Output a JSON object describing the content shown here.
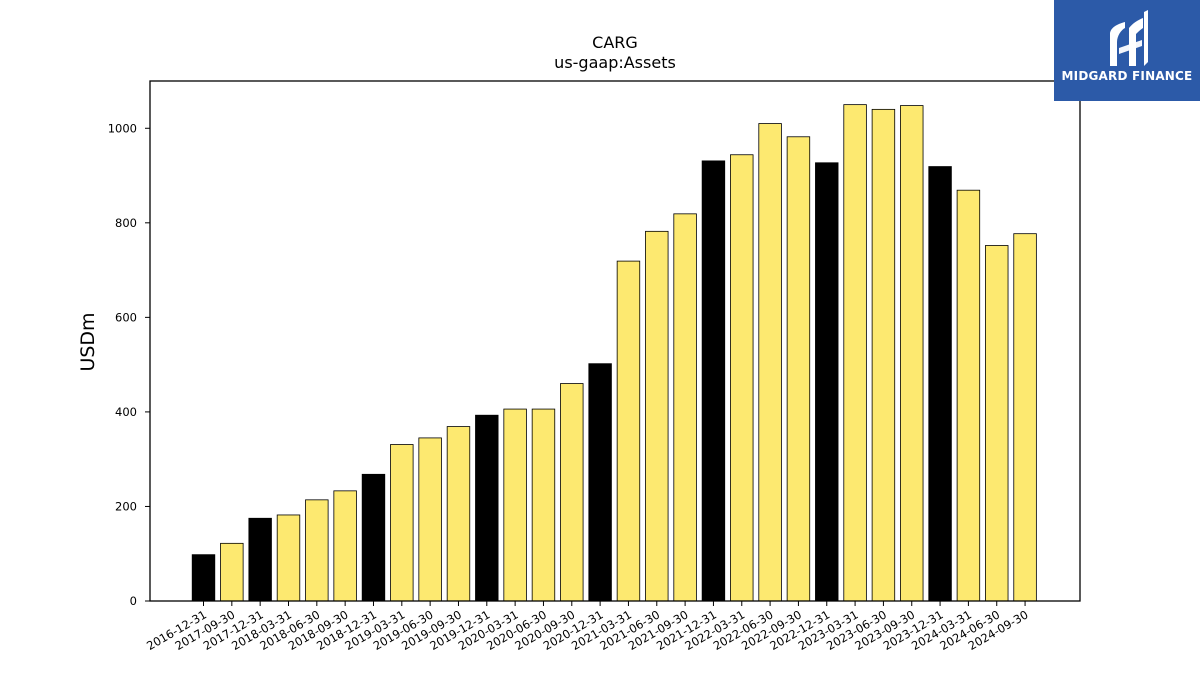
{
  "chart_data": {
    "type": "bar",
    "title": "CARG",
    "subtitle": "us-gaap:Assets",
    "xlabel": "",
    "ylabel": "USDm",
    "ylim": [
      0,
      1100
    ],
    "yticks": [
      0,
      200,
      400,
      600,
      800,
      1000
    ],
    "grid": false,
    "categories": [
      "2016-12-31",
      "2017-09-30",
      "2017-12-31",
      "2018-03-31",
      "2018-06-30",
      "2018-09-30",
      "2018-12-31",
      "2019-03-31",
      "2019-06-30",
      "2019-09-30",
      "2019-12-31",
      "2020-03-31",
      "2020-06-30",
      "2020-09-30",
      "2020-12-31",
      "2021-03-31",
      "2021-06-30",
      "2021-09-30",
      "2021-12-31",
      "2022-03-31",
      "2022-06-30",
      "2022-09-30",
      "2022-12-31",
      "2023-03-31",
      "2023-06-30",
      "2023-09-30",
      "2023-12-31",
      "2024-03-31",
      "2024-06-30",
      "2024-09-30"
    ],
    "values": [
      98,
      122,
      175,
      182,
      214,
      233,
      268,
      331,
      345,
      369,
      393,
      406,
      406,
      460,
      502,
      719,
      782,
      819,
      931,
      944,
      1010,
      982,
      927,
      1050,
      1040,
      1048,
      919,
      869,
      752,
      777
    ],
    "colors": {
      "annual": "#000000",
      "quarterly": "#fde970",
      "edge": "#000000"
    },
    "bar_type": [
      "annual",
      "quarterly",
      "annual",
      "quarterly",
      "quarterly",
      "quarterly",
      "annual",
      "quarterly",
      "quarterly",
      "quarterly",
      "annual",
      "quarterly",
      "quarterly",
      "quarterly",
      "annual",
      "quarterly",
      "quarterly",
      "quarterly",
      "annual",
      "quarterly",
      "quarterly",
      "quarterly",
      "annual",
      "quarterly",
      "quarterly",
      "quarterly",
      "annual",
      "quarterly",
      "quarterly",
      "quarterly"
    ]
  },
  "logo": {
    "text": "MIDGARD FINANCE",
    "background": "#2c5aa8",
    "icon": "midgard-logo-icon"
  }
}
